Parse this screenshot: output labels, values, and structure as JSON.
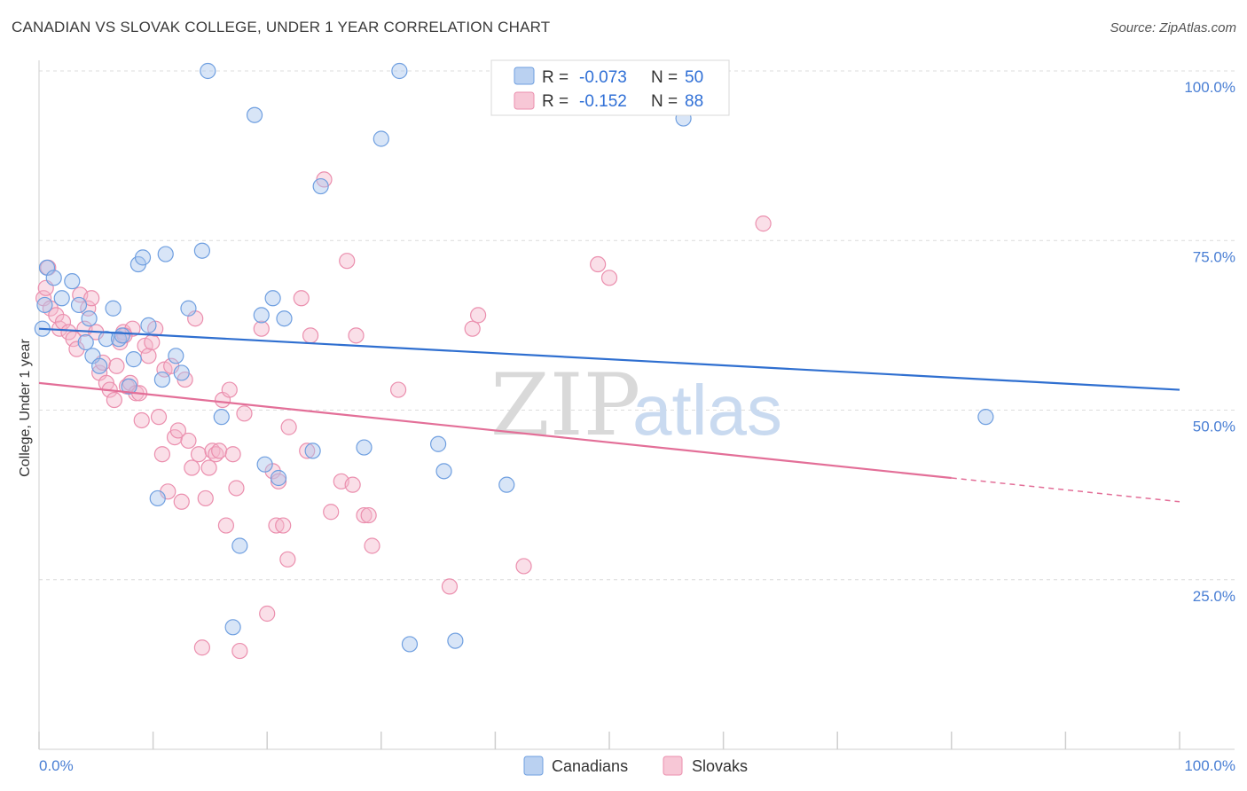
{
  "title": "CANADIAN VS SLOVAK COLLEGE, UNDER 1 YEAR CORRELATION CHART",
  "source": "Source: ZipAtlas.com",
  "watermark": {
    "zip": "ZIP",
    "atlas": "atlas"
  },
  "legend": {
    "rows": [
      {
        "r_label": "R =",
        "r_value": "-0.073",
        "n_label": "N =",
        "n_value": "50"
      },
      {
        "r_label": "R =",
        "r_value": "-0.152",
        "n_label": "N =",
        "n_value": "88"
      }
    ]
  },
  "chart_data": {
    "type": "scatter",
    "title": "CANADIAN VS SLOVAK COLLEGE, UNDER 1 YEAR CORRELATION CHART",
    "xlabel": "",
    "ylabel": "College, Under 1 year",
    "xlim": [
      0,
      100
    ],
    "ylim": [
      0,
      100
    ],
    "x_tick_labels": [
      "0.0%",
      "100.0%"
    ],
    "y_tick_labels": [
      "100.0%",
      "75.0%",
      "50.0%",
      "25.0%"
    ],
    "y_ticks": [
      100,
      75,
      50,
      25
    ],
    "grid": true,
    "legend_position": "top-center",
    "colors": {
      "canadians_fill": "#a9c6ee",
      "canadians_stroke": "#6f9fe0",
      "canadians_line": "#2f6fd0",
      "slovaks_fill": "#f5b9cc",
      "slovaks_stroke": "#eb8fae",
      "slovaks_line": "#e36f98",
      "tick_label": "#4a7fd4"
    },
    "series": [
      {
        "name": "Canadians",
        "r": -0.073,
        "n": 50,
        "trend": {
          "x": [
            0,
            100
          ],
          "y": [
            62.0,
            53.0
          ]
        },
        "points": [
          [
            0.5,
            65.5
          ],
          [
            0.7,
            71.0
          ],
          [
            1.3,
            69.5
          ],
          [
            2.0,
            66.5
          ],
          [
            2.9,
            69.0
          ],
          [
            3.5,
            65.5
          ],
          [
            4.1,
            60.0
          ],
          [
            4.4,
            63.5
          ],
          [
            4.7,
            58.0
          ],
          [
            5.3,
            56.5
          ],
          [
            5.9,
            60.5
          ],
          [
            6.5,
            65.0
          ],
          [
            7.0,
            60.5
          ],
          [
            7.3,
            61.0
          ],
          [
            7.9,
            53.5
          ],
          [
            8.3,
            57.5
          ],
          [
            8.7,
            71.5
          ],
          [
            9.1,
            72.5
          ],
          [
            9.6,
            62.5
          ],
          [
            10.4,
            37.0
          ],
          [
            10.8,
            54.5
          ],
          [
            11.1,
            73.0
          ],
          [
            12.0,
            58.0
          ],
          [
            12.5,
            55.5
          ],
          [
            13.1,
            65.0
          ],
          [
            14.3,
            73.5
          ],
          [
            14.8,
            100.0
          ],
          [
            16.0,
            49.0
          ],
          [
            17.0,
            18.0
          ],
          [
            17.6,
            30.0
          ],
          [
            18.9,
            93.5
          ],
          [
            19.5,
            64.0
          ],
          [
            19.8,
            42.0
          ],
          [
            20.5,
            66.5
          ],
          [
            21.0,
            40.0
          ],
          [
            21.5,
            63.5
          ],
          [
            24.0,
            44.0
          ],
          [
            24.7,
            83.0
          ],
          [
            28.5,
            44.5
          ],
          [
            30.0,
            90.0
          ],
          [
            31.6,
            100.0
          ],
          [
            32.5,
            15.5
          ],
          [
            35.0,
            45.0
          ],
          [
            35.5,
            41.0
          ],
          [
            36.5,
            16.0
          ],
          [
            41.0,
            39.0
          ],
          [
            48.5,
            100.0
          ],
          [
            56.5,
            93.0
          ],
          [
            83.0,
            49.0
          ],
          [
            0.3,
            62.0
          ]
        ]
      },
      {
        "name": "Slovaks",
        "r": -0.152,
        "n": 88,
        "trend": {
          "x": [
            0,
            80
          ],
          "y": [
            54.0,
            40.0
          ],
          "dashed_to": [
            100,
            36.5
          ]
        },
        "points": [
          [
            0.4,
            66.5
          ],
          [
            0.6,
            68.0
          ],
          [
            0.8,
            71.0
          ],
          [
            1.0,
            65.0
          ],
          [
            1.5,
            64.0
          ],
          [
            1.8,
            62.0
          ],
          [
            2.1,
            63.0
          ],
          [
            2.6,
            61.5
          ],
          [
            3.0,
            60.5
          ],
          [
            3.3,
            59.0
          ],
          [
            3.6,
            67.0
          ],
          [
            4.0,
            62.0
          ],
          [
            4.3,
            65.0
          ],
          [
            4.6,
            66.5
          ],
          [
            5.0,
            61.5
          ],
          [
            5.3,
            55.5
          ],
          [
            5.6,
            57.0
          ],
          [
            5.9,
            54.0
          ],
          [
            6.2,
            53.0
          ],
          [
            6.6,
            51.5
          ],
          [
            6.8,
            56.5
          ],
          [
            7.1,
            60.0
          ],
          [
            7.4,
            61.5
          ],
          [
            7.7,
            53.5
          ],
          [
            8.0,
            54.0
          ],
          [
            8.2,
            62.0
          ],
          [
            8.5,
            52.5
          ],
          [
            8.8,
            52.5
          ],
          [
            9.0,
            48.5
          ],
          [
            9.3,
            59.5
          ],
          [
            9.6,
            58.0
          ],
          [
            9.9,
            60.0
          ],
          [
            10.2,
            62.0
          ],
          [
            10.5,
            49.0
          ],
          [
            10.8,
            43.5
          ],
          [
            11.0,
            56.0
          ],
          [
            11.3,
            38.0
          ],
          [
            11.6,
            56.5
          ],
          [
            11.9,
            46.0
          ],
          [
            12.2,
            47.0
          ],
          [
            12.5,
            36.5
          ],
          [
            12.8,
            54.5
          ],
          [
            13.1,
            45.5
          ],
          [
            13.4,
            41.5
          ],
          [
            13.7,
            63.5
          ],
          [
            14.0,
            43.5
          ],
          [
            14.3,
            15.0
          ],
          [
            14.6,
            37.0
          ],
          [
            14.9,
            41.5
          ],
          [
            15.2,
            44.0
          ],
          [
            15.5,
            43.5
          ],
          [
            15.8,
            44.0
          ],
          [
            16.1,
            51.5
          ],
          [
            16.4,
            33.0
          ],
          [
            16.7,
            53.0
          ],
          [
            17.0,
            43.5
          ],
          [
            17.3,
            38.5
          ],
          [
            17.6,
            14.5
          ],
          [
            18.0,
            49.5
          ],
          [
            19.5,
            62.0
          ],
          [
            20.0,
            20.0
          ],
          [
            20.5,
            41.0
          ],
          [
            20.8,
            33.0
          ],
          [
            21.0,
            39.5
          ],
          [
            21.4,
            33.0
          ],
          [
            21.8,
            28.0
          ],
          [
            21.9,
            47.5
          ],
          [
            23.0,
            66.5
          ],
          [
            23.5,
            44.0
          ],
          [
            23.8,
            61.0
          ],
          [
            25.0,
            84.0
          ],
          [
            25.6,
            35.0
          ],
          [
            26.5,
            39.5
          ],
          [
            27.0,
            72.0
          ],
          [
            27.5,
            39.0
          ],
          [
            27.8,
            61.0
          ],
          [
            28.5,
            34.5
          ],
          [
            28.9,
            34.5
          ],
          [
            29.2,
            30.0
          ],
          [
            31.5,
            53.0
          ],
          [
            36.0,
            24.0
          ],
          [
            38.0,
            62.0
          ],
          [
            38.5,
            64.0
          ],
          [
            42.5,
            27.0
          ],
          [
            49.0,
            71.5
          ],
          [
            50.0,
            69.5
          ],
          [
            63.5,
            77.5
          ],
          [
            7.5,
            61.0
          ]
        ]
      }
    ]
  },
  "bottom_legend": {
    "items": [
      "Canadians",
      "Slovaks"
    ]
  }
}
